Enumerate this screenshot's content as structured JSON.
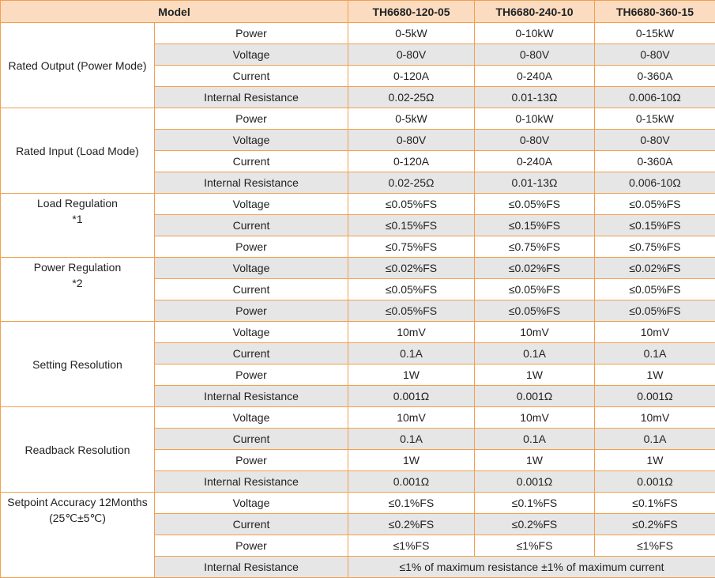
{
  "table": {
    "header": [
      "Model",
      "TH6680-120-05",
      "TH6680-240-10",
      "TH6680-360-15"
    ],
    "groups": [
      {
        "label": "Rated Output (Power Mode)",
        "rows": [
          {
            "param": "Power",
            "values": [
              "0-5kW",
              "0-10kW",
              "0-15kW"
            ]
          },
          {
            "param": "Voltage",
            "values": [
              "0-80V",
              "0-80V",
              "0-80V"
            ]
          },
          {
            "param": "Current",
            "values": [
              "0-120A",
              "0-240A",
              "0-360A"
            ]
          },
          {
            "param": "Internal Resistance",
            "values": [
              "0.02-25Ω",
              "0.01-13Ω",
              "0.006-10Ω"
            ]
          }
        ]
      },
      {
        "label": "Rated Input (Load Mode)",
        "rows": [
          {
            "param": "Power",
            "values": [
              "0-5kW",
              "0-10kW",
              "0-15kW"
            ]
          },
          {
            "param": "Voltage",
            "values": [
              "0-80V",
              "0-80V",
              "0-80V"
            ]
          },
          {
            "param": "Current",
            "values": [
              "0-120A",
              "0-240A",
              "0-360A"
            ]
          },
          {
            "param": "Internal Resistance",
            "values": [
              "0.02-25Ω",
              "0.01-13Ω",
              "0.006-10Ω"
            ]
          }
        ]
      },
      {
        "label": "Load Regulation\n*1",
        "rows": [
          {
            "param": "Voltage",
            "values": [
              "≤0.05%FS",
              "≤0.05%FS",
              "≤0.05%FS"
            ]
          },
          {
            "param": "Current",
            "values": [
              "≤0.15%FS",
              "≤0.15%FS",
              "≤0.15%FS"
            ]
          },
          {
            "param": "Power",
            "values": [
              "≤0.75%FS",
              "≤0.75%FS",
              "≤0.75%FS"
            ]
          }
        ]
      },
      {
        "label": "Power Regulation\n*2",
        "rows": [
          {
            "param": "Voltage",
            "values": [
              "≤0.02%FS",
              "≤0.02%FS",
              "≤0.02%FS"
            ]
          },
          {
            "param": "Current",
            "values": [
              "≤0.05%FS",
              "≤0.05%FS",
              "≤0.05%FS"
            ]
          },
          {
            "param": "Power",
            "values": [
              "≤0.05%FS",
              "≤0.05%FS",
              "≤0.05%FS"
            ]
          }
        ]
      },
      {
        "label": "Setting Resolution",
        "rows": [
          {
            "param": "Voltage",
            "values": [
              "10mV",
              "10mV",
              "10mV"
            ]
          },
          {
            "param": "Current",
            "values": [
              "0.1A",
              "0.1A",
              "0.1A"
            ]
          },
          {
            "param": "Power",
            "values": [
              "1W",
              "1W",
              "1W"
            ]
          },
          {
            "param": "Internal Resistance",
            "values": [
              "0.001Ω",
              "0.001Ω",
              "0.001Ω"
            ]
          }
        ]
      },
      {
        "label": "Readback Resolution",
        "rows": [
          {
            "param": "Voltage",
            "values": [
              "10mV",
              "10mV",
              "10mV"
            ]
          },
          {
            "param": "Current",
            "values": [
              "0.1A",
              "0.1A",
              "0.1A"
            ]
          },
          {
            "param": "Power",
            "values": [
              "1W",
              "1W",
              "1W"
            ]
          },
          {
            "param": "Internal Resistance",
            "values": [
              "0.001Ω",
              "0.001Ω",
              "0.001Ω"
            ]
          }
        ]
      },
      {
        "label": "Setpoint Accuracy 12Months\n(25℃±5℃)",
        "rows": [
          {
            "param": "Voltage",
            "values": [
              "≤0.1%FS",
              "≤0.1%FS",
              "≤0.1%FS"
            ]
          },
          {
            "param": "Current",
            "values": [
              "≤0.2%FS",
              "≤0.2%FS",
              "≤0.2%FS"
            ]
          },
          {
            "param": "Power",
            "values": [
              "≤1%FS",
              "≤1%FS",
              "≤1%FS"
            ]
          },
          {
            "param": "Internal Resistance",
            "values": [
              "≤1% of maximum resistance ±1% of maximum current"
            ]
          }
        ]
      }
    ]
  }
}
